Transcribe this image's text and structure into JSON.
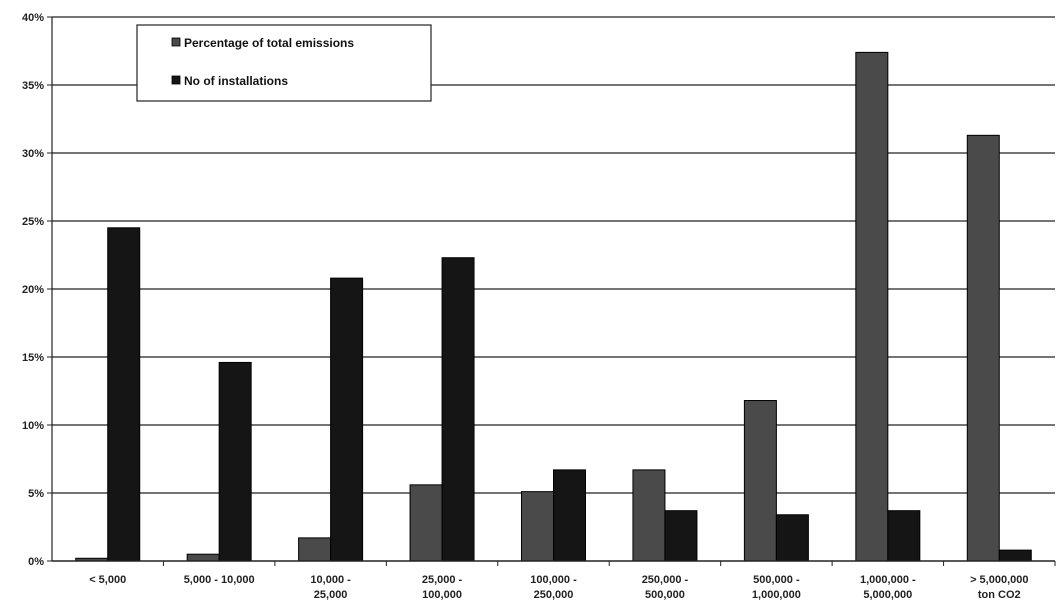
{
  "chart_data": {
    "type": "bar",
    "categories": [
      [
        "< 5,000"
      ],
      [
        "5,000 - 10,000"
      ],
      [
        "10,000 -",
        "25,000"
      ],
      [
        "25,000 -",
        "100,000"
      ],
      [
        "100,000 -",
        "250,000"
      ],
      [
        "250,000 -",
        "500,000"
      ],
      [
        "500,000 -",
        "1,000,000"
      ],
      [
        "1,000,000 -",
        "5,000,000"
      ],
      [
        "> 5,000,000",
        "ton CO2"
      ]
    ],
    "series": [
      {
        "name": "Percentage of total emissions",
        "color": "#4a4a4a",
        "values": [
          0.2,
          0.5,
          1.7,
          5.6,
          5.1,
          6.7,
          11.8,
          37.4,
          31.3
        ]
      },
      {
        "name": "No of installations",
        "color": "#151515",
        "values": [
          24.5,
          14.6,
          20.8,
          22.3,
          6.7,
          3.7,
          3.4,
          3.7,
          0.8
        ]
      }
    ],
    "yticks": [
      "0%",
      "5%",
      "10%",
      "15%",
      "20%",
      "25%",
      "30%",
      "35%",
      "40%"
    ],
    "ylim": [
      0,
      40
    ],
    "grid": true,
    "legend_position": "top-left",
    "title": "",
    "xlabel": "",
    "ylabel": ""
  }
}
